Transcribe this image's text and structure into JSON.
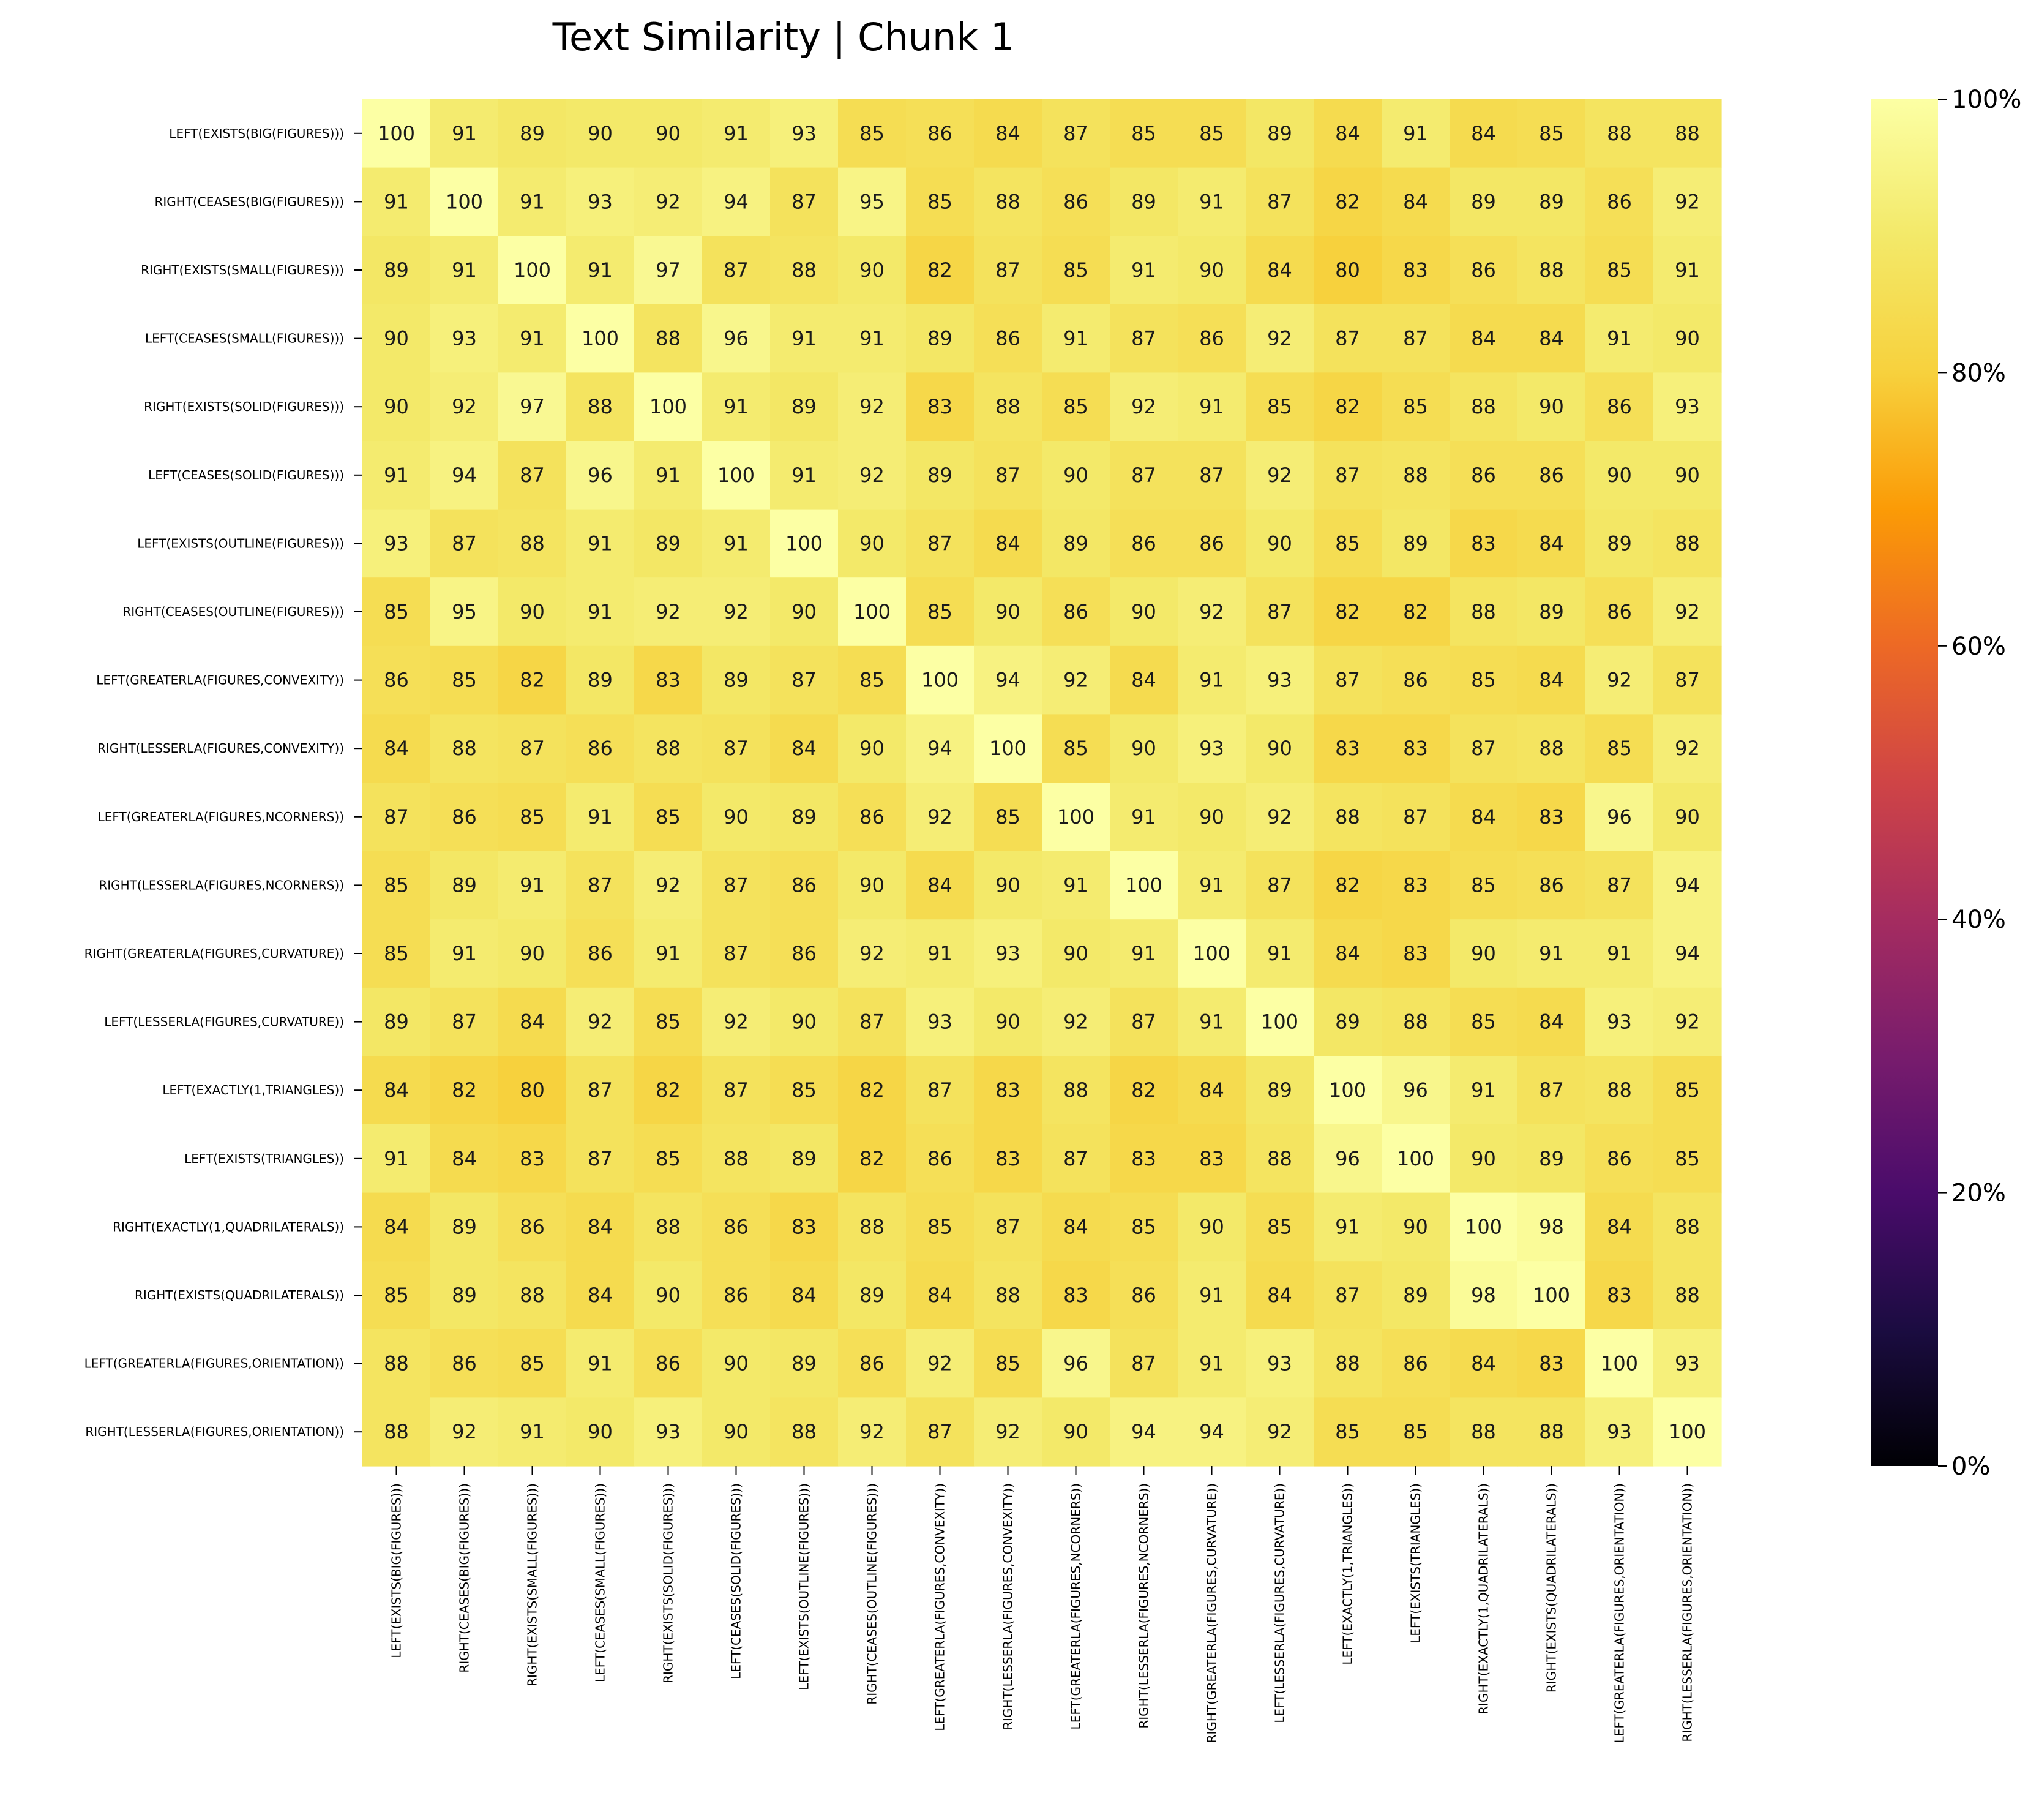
{
  "chart_data": {
    "type": "heatmap",
    "title": "Text Similarity | Chunk 1",
    "colormap": "inferno",
    "value_range": [
      0,
      100
    ],
    "colorbar_ticks": [
      "0%",
      "20%",
      "40%",
      "60%",
      "80%",
      "100%"
    ],
    "colorbar_tick_values": [
      0,
      20,
      40,
      60,
      80,
      100
    ],
    "rows": [
      "LEFT(EXISTS(BIG(FIGURES)))",
      "RIGHT(CEASES(BIG(FIGURES)))",
      "RIGHT(EXISTS(SMALL(FIGURES)))",
      "LEFT(CEASES(SMALL(FIGURES)))",
      "RIGHT(EXISTS(SOLID(FIGURES)))",
      "LEFT(CEASES(SOLID(FIGURES)))",
      "LEFT(EXISTS(OUTLINE(FIGURES)))",
      "RIGHT(CEASES(OUTLINE(FIGURES)))",
      "LEFT(GREATERLA(FIGURES,CONVEXITY))",
      "RIGHT(LESSERLA(FIGURES,CONVEXITY))",
      "LEFT(GREATERLA(FIGURES,NCORNERS))",
      "RIGHT(LESSERLA(FIGURES,NCORNERS))",
      "RIGHT(GREATERLA(FIGURES,CURVATURE))",
      "LEFT(LESSERLA(FIGURES,CURVATURE))",
      "LEFT(EXACTLY(1,TRIANGLES))",
      "LEFT(EXISTS(TRIANGLES))",
      "RIGHT(EXACTLY(1,QUADRILATERALS))",
      "RIGHT(EXISTS(QUADRILATERALS))",
      "LEFT(GREATERLA(FIGURES,ORIENTATION))",
      "RIGHT(LESSERLA(FIGURES,ORIENTATION))"
    ],
    "columns": [
      "LEFT(EXISTS(BIG(FIGURES)))",
      "RIGHT(CEASES(BIG(FIGURES)))",
      "RIGHT(EXISTS(SMALL(FIGURES)))",
      "LEFT(CEASES(SMALL(FIGURES)))",
      "RIGHT(EXISTS(SOLID(FIGURES)))",
      "LEFT(CEASES(SOLID(FIGURES)))",
      "LEFT(EXISTS(OUTLINE(FIGURES)))",
      "RIGHT(CEASES(OUTLINE(FIGURES)))",
      "LEFT(GREATERLA(FIGURES,CONVEXITY))",
      "RIGHT(LESSERLA(FIGURES,CONVEXITY))",
      "LEFT(GREATERLA(FIGURES,NCORNERS))",
      "RIGHT(LESSERLA(FIGURES,NCORNERS))",
      "RIGHT(GREATERLA(FIGURES,CURVATURE))",
      "LEFT(LESSERLA(FIGURES,CURVATURE))",
      "LEFT(EXACTLY(1,TRIANGLES))",
      "LEFT(EXISTS(TRIANGLES))",
      "RIGHT(EXACTLY(1,QUADRILATERALS))",
      "RIGHT(EXISTS(QUADRILATERALS))",
      "LEFT(GREATERLA(FIGURES,ORIENTATION))",
      "RIGHT(LESSERLA(FIGURES,ORIENTATION))"
    ],
    "values": [
      [
        100,
        91,
        89,
        90,
        90,
        91,
        93,
        85,
        86,
        84,
        87,
        85,
        85,
        89,
        84,
        91,
        84,
        85,
        88,
        88
      ],
      [
        91,
        100,
        91,
        93,
        92,
        94,
        87,
        95,
        85,
        88,
        86,
        89,
        91,
        87,
        82,
        84,
        89,
        89,
        86,
        92
      ],
      [
        89,
        91,
        100,
        91,
        97,
        87,
        88,
        90,
        82,
        87,
        85,
        91,
        90,
        84,
        80,
        83,
        86,
        88,
        85,
        91
      ],
      [
        90,
        93,
        91,
        100,
        88,
        96,
        91,
        91,
        89,
        86,
        91,
        87,
        86,
        92,
        87,
        87,
        84,
        84,
        91,
        90
      ],
      [
        90,
        92,
        97,
        88,
        100,
        91,
        89,
        92,
        83,
        88,
        85,
        92,
        91,
        85,
        82,
        85,
        88,
        90,
        86,
        93
      ],
      [
        91,
        94,
        87,
        96,
        91,
        100,
        91,
        92,
        89,
        87,
        90,
        87,
        87,
        92,
        87,
        88,
        86,
        86,
        90,
        90
      ],
      [
        93,
        87,
        88,
        91,
        89,
        91,
        100,
        90,
        87,
        84,
        89,
        86,
        86,
        90,
        85,
        89,
        83,
        84,
        89,
        88
      ],
      [
        85,
        95,
        90,
        91,
        92,
        92,
        90,
        100,
        85,
        90,
        86,
        90,
        92,
        87,
        82,
        82,
        88,
        89,
        86,
        92
      ],
      [
        86,
        85,
        82,
        89,
        83,
        89,
        87,
        85,
        100,
        94,
        92,
        84,
        91,
        93,
        87,
        86,
        85,
        84,
        92,
        87
      ],
      [
        84,
        88,
        87,
        86,
        88,
        87,
        84,
        90,
        94,
        100,
        85,
        90,
        93,
        90,
        83,
        83,
        87,
        88,
        85,
        92
      ],
      [
        87,
        86,
        85,
        91,
        85,
        90,
        89,
        86,
        92,
        85,
        100,
        91,
        90,
        92,
        88,
        87,
        84,
        83,
        96,
        90
      ],
      [
        85,
        89,
        91,
        87,
        92,
        87,
        86,
        90,
        84,
        90,
        91,
        100,
        91,
        87,
        82,
        83,
        85,
        86,
        87,
        94
      ],
      [
        85,
        91,
        90,
        86,
        91,
        87,
        86,
        92,
        91,
        93,
        90,
        91,
        100,
        91,
        84,
        83,
        90,
        91,
        91,
        94
      ],
      [
        89,
        87,
        84,
        92,
        85,
        92,
        90,
        87,
        93,
        90,
        92,
        87,
        91,
        100,
        89,
        88,
        85,
        84,
        93,
        92
      ],
      [
        84,
        82,
        80,
        87,
        82,
        87,
        85,
        82,
        87,
        83,
        88,
        82,
        84,
        89,
        100,
        96,
        91,
        87,
        88,
        85
      ],
      [
        91,
        84,
        83,
        87,
        85,
        88,
        89,
        82,
        86,
        83,
        87,
        83,
        83,
        88,
        96,
        100,
        90,
        89,
        86,
        85
      ],
      [
        84,
        89,
        86,
        84,
        88,
        86,
        83,
        88,
        85,
        87,
        84,
        85,
        90,
        85,
        91,
        90,
        100,
        98,
        84,
        88
      ],
      [
        85,
        89,
        88,
        84,
        90,
        86,
        84,
        89,
        84,
        88,
        83,
        86,
        91,
        84,
        87,
        89,
        98,
        100,
        83,
        88
      ],
      [
        88,
        86,
        85,
        91,
        86,
        90,
        89,
        86,
        92,
        85,
        96,
        87,
        91,
        93,
        88,
        86,
        84,
        83,
        100,
        93
      ],
      [
        88,
        92,
        91,
        90,
        93,
        90,
        88,
        92,
        87,
        92,
        90,
        94,
        94,
        92,
        85,
        85,
        88,
        88,
        93,
        100
      ]
    ]
  }
}
